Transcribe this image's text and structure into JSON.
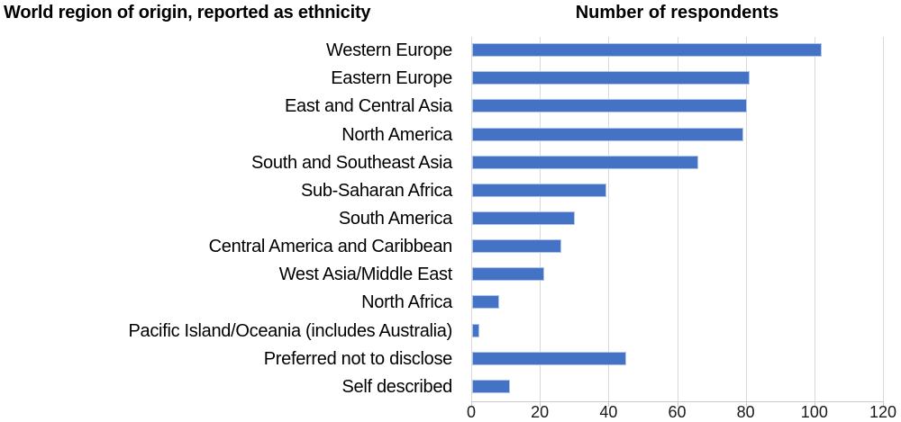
{
  "header": {
    "left_title": "World region of origin, reported as ethnicity",
    "right_title": "Number of respondents"
  },
  "chart_data": {
    "type": "bar",
    "orientation": "horizontal",
    "title": "Number of respondents",
    "ylabel": "World region of origin, reported as ethnicity",
    "xlabel": "",
    "categories": [
      "Western Europe",
      "Eastern Europe",
      "East and Central Asia",
      "North America",
      "South and Southeast Asia",
      "Sub-Saharan Africa",
      "South America",
      "Central America and Caribbean",
      "West Asia/Middle East",
      "North Africa",
      "Pacific Island/Oceania (includes Australia)",
      "Preferred not to disclose",
      "Self described"
    ],
    "values": [
      102,
      81,
      80,
      79,
      66,
      39,
      30,
      26,
      21,
      8,
      2,
      45,
      11
    ],
    "xlim": [
      0,
      120
    ],
    "xticks": [
      0,
      20,
      40,
      60,
      80,
      100,
      120
    ],
    "grid": true,
    "legend": "none",
    "colors": {
      "bar_fill": "#4472C4",
      "bar_border": "#aec3ea",
      "gridline": "#d9d9d9",
      "axis_line": "#c9c9c9",
      "text": "#000000",
      "tick_text": "#1a1a1a"
    }
  }
}
